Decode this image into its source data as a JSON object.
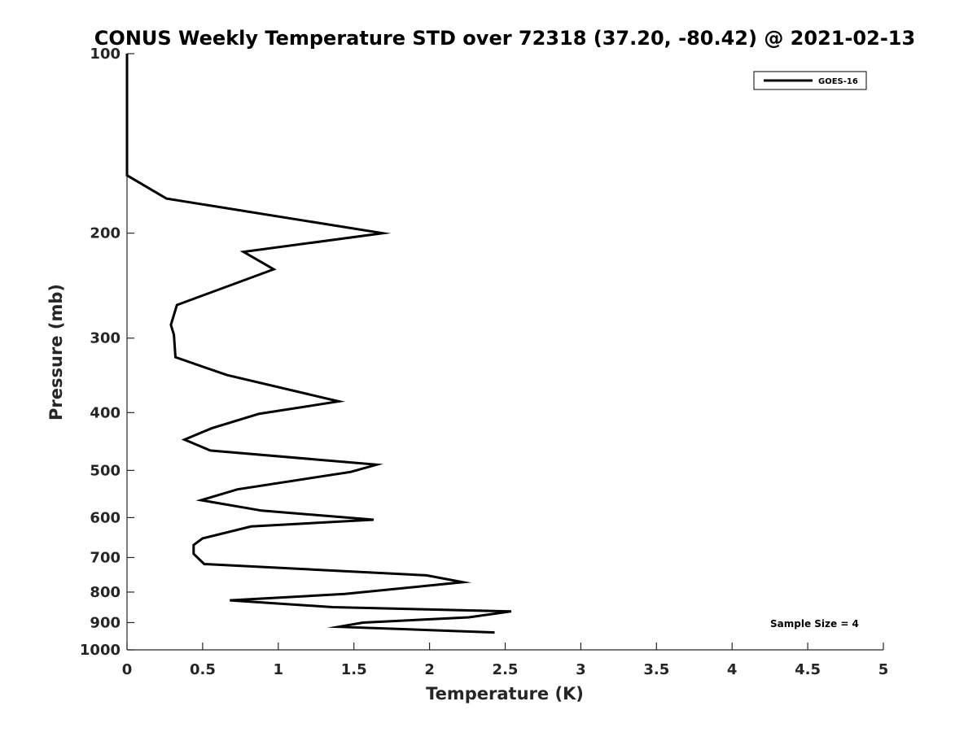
{
  "chart_data": {
    "type": "line",
    "title": "CONUS Weekly Temperature STD over 72318 (37.20, -80.42) @ 2021-02-13",
    "xlabel": "Temperature (K)",
    "ylabel": "Pressure (mb)",
    "xlim": [
      0,
      5
    ],
    "ylim": [
      100,
      1000
    ],
    "y_scale": "log",
    "y_reversed": true,
    "x_ticks": [
      0,
      0.5,
      1,
      1.5,
      2,
      2.5,
      3,
      3.5,
      4,
      4.5,
      5
    ],
    "x_tick_labels": [
      "0",
      "0.5",
      "1",
      "1.5",
      "2",
      "2.5",
      "3",
      "3.5",
      "4",
      "4.5",
      "5"
    ],
    "y_ticks": [
      100,
      200,
      300,
      400,
      500,
      600,
      700,
      800,
      900,
      1000
    ],
    "y_tick_labels": [
      "100",
      "200",
      "300",
      "400",
      "500",
      "600",
      "700",
      "800",
      "900",
      "1000"
    ],
    "grid": false,
    "legend_position": "top-right",
    "annotation": "Sample Size = 4",
    "series": [
      {
        "name": "GOES-16",
        "color": "#000000",
        "points": [
          [
            0,
            100
          ],
          [
            0,
            160
          ],
          [
            0.26,
            175
          ],
          [
            1.69,
            200
          ],
          [
            0.77,
            215
          ],
          [
            0.97,
            230
          ],
          [
            0.33,
            264
          ],
          [
            0.29,
            285
          ],
          [
            0.31,
            296
          ],
          [
            0.32,
            323
          ],
          [
            0.66,
            346
          ],
          [
            1.4,
            383
          ],
          [
            0.87,
            402
          ],
          [
            0.56,
            425
          ],
          [
            0.38,
            444
          ],
          [
            0.55,
            463
          ],
          [
            1.65,
            489
          ],
          [
            1.48,
            503
          ],
          [
            0.73,
            538
          ],
          [
            0.49,
            561
          ],
          [
            0.89,
            584
          ],
          [
            1.63,
            605
          ],
          [
            0.82,
            621
          ],
          [
            0.5,
            650
          ],
          [
            0.44,
            667
          ],
          [
            0.44,
            690
          ],
          [
            0.51,
            718
          ],
          [
            1.98,
            750
          ],
          [
            2.22,
            770
          ],
          [
            1.44,
            806
          ],
          [
            0.68,
            826
          ],
          [
            1.36,
            848
          ],
          [
            2.54,
            862
          ],
          [
            2.26,
            882
          ],
          [
            1.56,
            900
          ],
          [
            1.4,
            915
          ],
          [
            2.43,
            935
          ]
        ]
      }
    ]
  }
}
